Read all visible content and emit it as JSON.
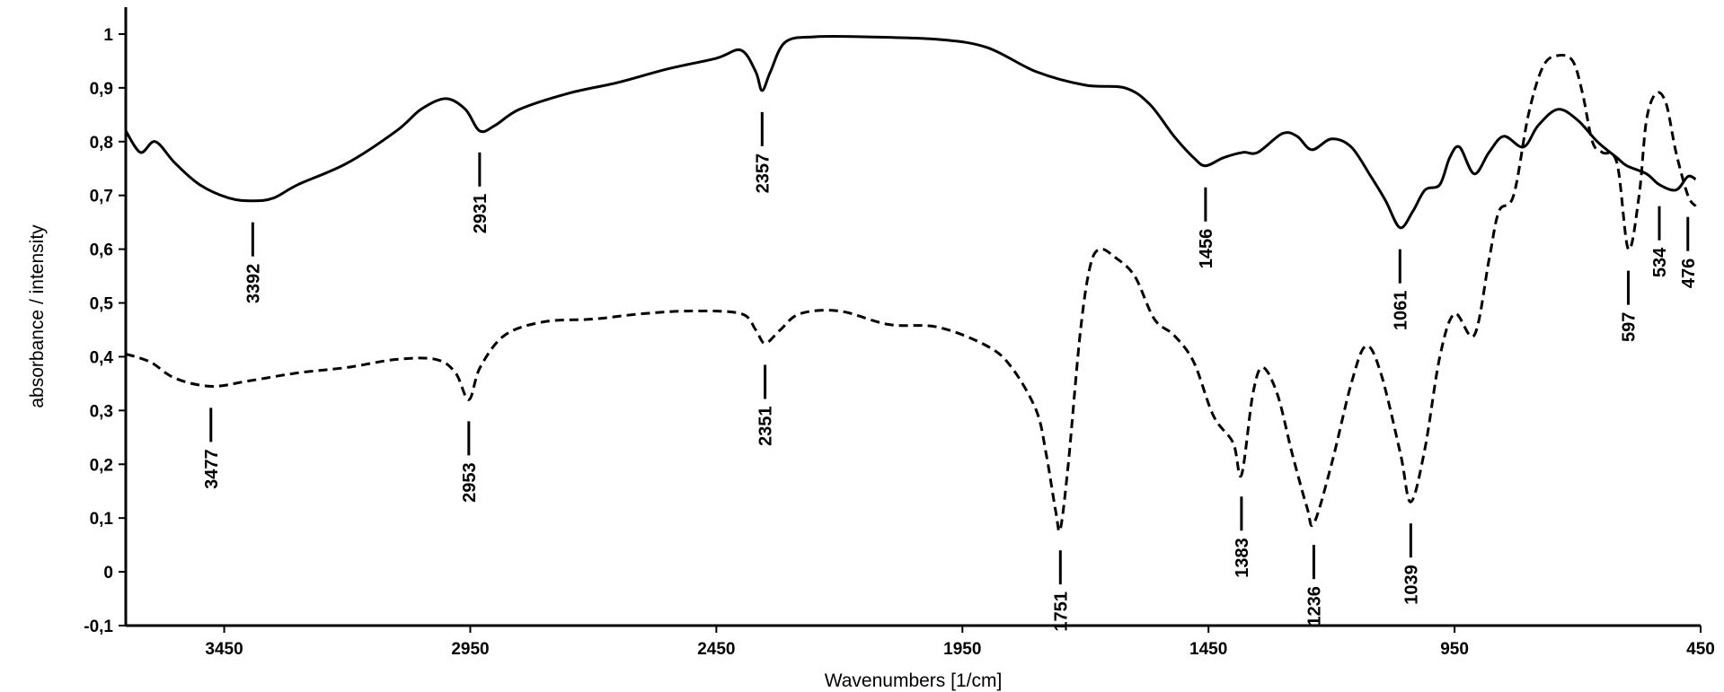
{
  "chart_data": {
    "type": "line",
    "xlabel": "Wavenumbers [1/cm]",
    "ylabel": "absorbance / intensity",
    "xlim": [
      3650,
      450
    ],
    "ylim": [
      -0.1,
      1.05
    ],
    "x_reversed": true,
    "grid": false,
    "x_ticks": [
      3450,
      2950,
      2450,
      1950,
      1450,
      950,
      450
    ],
    "y_ticks": [
      -0.1,
      0,
      0.1,
      0.2,
      0.3,
      0.4,
      0.5,
      0.6,
      0.7,
      0.8,
      0.9,
      1
    ],
    "x_tick_labels": [
      "3450",
      "2950",
      "2450",
      "1950",
      "1450",
      "950",
      "450"
    ],
    "y_tick_labels": [
      "-0,1",
      "0",
      "0,1",
      "0,2",
      "0,3",
      "0,4",
      "0,5",
      "0,6",
      "0,7",
      "0,8",
      "0,9",
      "1"
    ],
    "series": [
      {
        "style": "solid",
        "color": "#000000",
        "points": [
          [
            3650,
            0.82
          ],
          [
            3620,
            0.78
          ],
          [
            3590,
            0.8
          ],
          [
            3550,
            0.76
          ],
          [
            3500,
            0.72
          ],
          [
            3440,
            0.695
          ],
          [
            3392,
            0.69
          ],
          [
            3350,
            0.695
          ],
          [
            3300,
            0.72
          ],
          [
            3200,
            0.76
          ],
          [
            3100,
            0.82
          ],
          [
            3050,
            0.86
          ],
          [
            3000,
            0.88
          ],
          [
            2960,
            0.86
          ],
          [
            2931,
            0.82
          ],
          [
            2900,
            0.83
          ],
          [
            2850,
            0.86
          ],
          [
            2750,
            0.89
          ],
          [
            2650,
            0.91
          ],
          [
            2550,
            0.935
          ],
          [
            2450,
            0.955
          ],
          [
            2400,
            0.97
          ],
          [
            2370,
            0.93
          ],
          [
            2357,
            0.895
          ],
          [
            2340,
            0.93
          ],
          [
            2310,
            0.985
          ],
          [
            2250,
            0.995
          ],
          [
            2150,
            0.995
          ],
          [
            2000,
            0.99
          ],
          [
            1900,
            0.975
          ],
          [
            1800,
            0.93
          ],
          [
            1700,
            0.905
          ],
          [
            1620,
            0.9
          ],
          [
            1570,
            0.87
          ],
          [
            1520,
            0.81
          ],
          [
            1480,
            0.77
          ],
          [
            1456,
            0.755
          ],
          [
            1420,
            0.77
          ],
          [
            1380,
            0.78
          ],
          [
            1350,
            0.78
          ],
          [
            1300,
            0.815
          ],
          [
            1270,
            0.81
          ],
          [
            1240,
            0.785
          ],
          [
            1200,
            0.805
          ],
          [
            1160,
            0.79
          ],
          [
            1120,
            0.735
          ],
          [
            1090,
            0.69
          ],
          [
            1061,
            0.64
          ],
          [
            1035,
            0.67
          ],
          [
            1010,
            0.71
          ],
          [
            980,
            0.72
          ],
          [
            960,
            0.77
          ],
          [
            940,
            0.79
          ],
          [
            910,
            0.74
          ],
          [
            880,
            0.78
          ],
          [
            850,
            0.81
          ],
          [
            810,
            0.79
          ],
          [
            780,
            0.83
          ],
          [
            740,
            0.86
          ],
          [
            700,
            0.84
          ],
          [
            660,
            0.8
          ],
          [
            620,
            0.77
          ],
          [
            600,
            0.755
          ],
          [
            560,
            0.74
          ],
          [
            534,
            0.72
          ],
          [
            500,
            0.71
          ],
          [
            476,
            0.735
          ],
          [
            460,
            0.73
          ]
        ]
      },
      {
        "style": "dashed",
        "color": "#000000",
        "points": [
          [
            3650,
            0.405
          ],
          [
            3600,
            0.39
          ],
          [
            3550,
            0.36
          ],
          [
            3477,
            0.345
          ],
          [
            3400,
            0.355
          ],
          [
            3300,
            0.37
          ],
          [
            3200,
            0.38
          ],
          [
            3100,
            0.395
          ],
          [
            3020,
            0.395
          ],
          [
            2980,
            0.37
          ],
          [
            2953,
            0.32
          ],
          [
            2930,
            0.38
          ],
          [
            2880,
            0.44
          ],
          [
            2800,
            0.465
          ],
          [
            2700,
            0.47
          ],
          [
            2600,
            0.48
          ],
          [
            2500,
            0.485
          ],
          [
            2400,
            0.48
          ],
          [
            2370,
            0.45
          ],
          [
            2351,
            0.425
          ],
          [
            2320,
            0.45
          ],
          [
            2280,
            0.48
          ],
          [
            2200,
            0.485
          ],
          [
            2100,
            0.46
          ],
          [
            2000,
            0.455
          ],
          [
            1900,
            0.42
          ],
          [
            1850,
            0.38
          ],
          [
            1800,
            0.3
          ],
          [
            1780,
            0.22
          ],
          [
            1760,
            0.11
          ],
          [
            1751,
            0.08
          ],
          [
            1735,
            0.2
          ],
          [
            1710,
            0.45
          ],
          [
            1690,
            0.57
          ],
          [
            1670,
            0.6
          ],
          [
            1640,
            0.585
          ],
          [
            1600,
            0.55
          ],
          [
            1560,
            0.47
          ],
          [
            1520,
            0.44
          ],
          [
            1480,
            0.39
          ],
          [
            1440,
            0.29
          ],
          [
            1400,
            0.24
          ],
          [
            1383,
            0.18
          ],
          [
            1360,
            0.33
          ],
          [
            1340,
            0.38
          ],
          [
            1310,
            0.33
          ],
          [
            1280,
            0.22
          ],
          [
            1250,
            0.12
          ],
          [
            1236,
            0.09
          ],
          [
            1200,
            0.2
          ],
          [
            1160,
            0.35
          ],
          [
            1130,
            0.42
          ],
          [
            1100,
            0.37
          ],
          [
            1060,
            0.22
          ],
          [
            1039,
            0.13
          ],
          [
            1010,
            0.23
          ],
          [
            980,
            0.4
          ],
          [
            950,
            0.48
          ],
          [
            910,
            0.44
          ],
          [
            880,
            0.58
          ],
          [
            860,
            0.67
          ],
          [
            830,
            0.7
          ],
          [
            800,
            0.85
          ],
          [
            770,
            0.94
          ],
          [
            740,
            0.96
          ],
          [
            710,
            0.95
          ],
          [
            690,
            0.89
          ],
          [
            670,
            0.8
          ],
          [
            650,
            0.78
          ],
          [
            620,
            0.76
          ],
          [
            597,
            0.6
          ],
          [
            575,
            0.7
          ],
          [
            560,
            0.84
          ],
          [
            540,
            0.89
          ],
          [
            520,
            0.87
          ],
          [
            500,
            0.78
          ],
          [
            476,
            0.7
          ],
          [
            460,
            0.68
          ]
        ]
      }
    ],
    "peak_labels": [
      {
        "label": "3392",
        "x": 3392,
        "y": 0.69,
        "position": "below"
      },
      {
        "label": "2931",
        "x": 2931,
        "y": 0.82,
        "position": "below"
      },
      {
        "label": "2357",
        "x": 2357,
        "y": 0.895,
        "position": "below"
      },
      {
        "label": "1456",
        "x": 1456,
        "y": 0.755,
        "position": "below"
      },
      {
        "label": "1061",
        "x": 1061,
        "y": 0.64,
        "position": "below"
      },
      {
        "label": "597",
        "x": 597,
        "y": 0.6,
        "position": "below"
      },
      {
        "label": "534",
        "x": 534,
        "y": 0.72,
        "position": "below"
      },
      {
        "label": "476",
        "x": 476,
        "y": 0.7,
        "position": "below"
      },
      {
        "label": "3477",
        "x": 3477,
        "y": 0.345,
        "position": "below"
      },
      {
        "label": "2953",
        "x": 2953,
        "y": 0.32,
        "position": "below"
      },
      {
        "label": "2351",
        "x": 2351,
        "y": 0.425,
        "position": "below"
      },
      {
        "label": "1751",
        "x": 1751,
        "y": 0.08,
        "position": "below"
      },
      {
        "label": "1383",
        "x": 1383,
        "y": 0.18,
        "position": "below"
      },
      {
        "label": "1236",
        "x": 1236,
        "y": 0.09,
        "position": "below"
      },
      {
        "label": "1039",
        "x": 1039,
        "y": 0.13,
        "position": "below"
      }
    ]
  }
}
